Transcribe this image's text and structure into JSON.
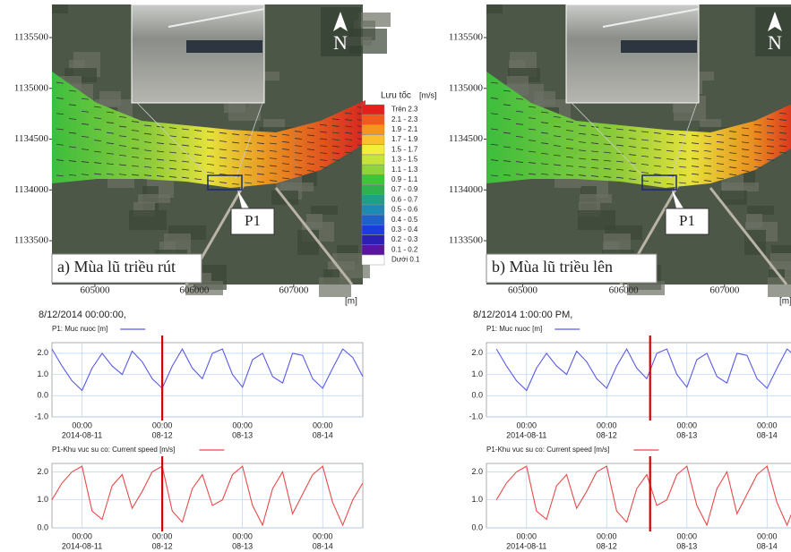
{
  "maps": [
    {
      "label": "a) Mùa lũ triều rút",
      "marker": "P1",
      "north": "N",
      "x_unit": "[m]",
      "xlim": [
        604568,
        607695
      ],
      "ylim": [
        1133069,
        1135826
      ],
      "xticks": [
        605000,
        606000,
        607000
      ],
      "yticks": [
        1133500,
        1134000,
        1134500,
        1135000,
        1135500
      ],
      "legend": {
        "title": "Lưu tốc",
        "unit": "[m/s]",
        "entries": [
          {
            "label": "Trên  2.3",
            "color": "#e3201b"
          },
          {
            "label": "2.1 - 2.3",
            "color": "#f05a1e"
          },
          {
            "label": "1.9 - 2.1",
            "color": "#f7941d"
          },
          {
            "label": "1.7 - 1.9",
            "color": "#fbc02d"
          },
          {
            "label": "1.5 - 1.7",
            "color": "#f3ee3a"
          },
          {
            "label": "1.3 - 1.5",
            "color": "#c6e43a"
          },
          {
            "label": "1.1 - 1.3",
            "color": "#8ed43a"
          },
          {
            "label": "0.9 - 1.1",
            "color": "#3cc63c"
          },
          {
            "label": "0.7 - 0.9",
            "color": "#2db24e"
          },
          {
            "label": "0.6 - 0.7",
            "color": "#1f9e8a"
          },
          {
            "label": "0.5 - 0.6",
            "color": "#1e8ab4"
          },
          {
            "label": "0.4 - 0.5",
            "color": "#1e62c8"
          },
          {
            "label": "0.3 - 0.4",
            "color": "#1e3cdc"
          },
          {
            "label": "0.2 - 0.3",
            "color": "#2d1eb4"
          },
          {
            "label": "0.1 - 0.2",
            "color": "#5a14a0"
          },
          {
            "label": "Dưới  0.1",
            "color": "#ffffff"
          }
        ]
      }
    },
    {
      "label": "b) Mùa lũ triều lên",
      "marker": "P1",
      "north": "N",
      "x_unit": "[m]",
      "xlim": [
        604640,
        607703
      ],
      "ylim": [
        1133069,
        1135826
      ],
      "xticks": [
        605000,
        606000,
        607000
      ],
      "yticks": [
        1133500,
        1134000,
        1134500,
        1135000,
        1135500
      ]
    }
  ],
  "chart_data": [
    {
      "type": "line",
      "title": "8/12/2014 00:00:00,",
      "current_time": "2014-08-12 00:00",
      "xlim": [
        "2014-08-10 15:00",
        "2014-08-14 12:00"
      ],
      "xticks": [
        {
          "value": "2014-08-11 00:00",
          "label": "00:00",
          "date_label": "2014-08-11"
        },
        {
          "value": "2014-08-12 00:00",
          "label": "00:00",
          "date_label": "08-12"
        },
        {
          "value": "2014-08-13 00:00",
          "label": "00:00",
          "date_label": "08-13"
        },
        {
          "value": "2014-08-14 00:00",
          "label": "00:00",
          "date_label": "08-14"
        }
      ],
      "ylim": [
        -1,
        2.5
      ],
      "yticks": [
        {
          "value": -1,
          "label": "-1.0"
        },
        {
          "value": 0,
          "label": "0.0"
        },
        {
          "value": 1,
          "label": "1.0"
        },
        {
          "value": 2,
          "label": "2.0"
        }
      ],
      "grid": true,
      "x": [
        "2014-08-10 15:00",
        "2014-08-10 18:00",
        "2014-08-10 21:00",
        "2014-08-11 00:00",
        "2014-08-11 03:00",
        "2014-08-11 06:00",
        "2014-08-11 09:00",
        "2014-08-11 12:00",
        "2014-08-11 15:00",
        "2014-08-11 18:00",
        "2014-08-11 21:00",
        "2014-08-12 00:00",
        "2014-08-12 03:00",
        "2014-08-12 06:00",
        "2014-08-12 09:00",
        "2014-08-12 12:00",
        "2014-08-12 15:00",
        "2014-08-12 18:00",
        "2014-08-12 21:00",
        "2014-08-13 00:00",
        "2014-08-13 03:00",
        "2014-08-13 06:00",
        "2014-08-13 09:00",
        "2014-08-13 12:00",
        "2014-08-13 15:00",
        "2014-08-13 18:00",
        "2014-08-13 21:00",
        "2014-08-14 00:00",
        "2014-08-14 03:00",
        "2014-08-14 06:00",
        "2014-08-14 09:00",
        "2014-08-14 12:00"
      ],
      "series": [
        {
          "name": "P1: Muc nuoc [m]",
          "color": "#5a5ae6",
          "values": [
            2.2,
            1.4,
            0.7,
            0.25,
            1.3,
            2.0,
            1.4,
            1.0,
            2.1,
            1.6,
            0.8,
            0.35,
            1.4,
            2.2,
            1.3,
            0.8,
            2.0,
            2.2,
            1.0,
            0.4,
            1.7,
            2.0,
            0.9,
            0.6,
            2.0,
            1.9,
            0.8,
            0.35,
            1.3,
            2.2,
            1.8,
            0.9
          ]
        }
      ]
    },
    {
      "type": "line",
      "current_time": "2014-08-12 00:00",
      "xlim": [
        "2014-08-10 15:00",
        "2014-08-14 12:00"
      ],
      "xticks": [
        {
          "value": "2014-08-11 00:00",
          "label": "00:00",
          "date_label": "2014-08-11"
        },
        {
          "value": "2014-08-12 00:00",
          "label": "00:00",
          "date_label": "08-12"
        },
        {
          "value": "2014-08-13 00:00",
          "label": "00:00",
          "date_label": "08-13"
        },
        {
          "value": "2014-08-14 00:00",
          "label": "00:00",
          "date_label": "08-14"
        }
      ],
      "ylim": [
        0,
        2.3
      ],
      "yticks": [
        {
          "value": 0,
          "label": "0.0"
        },
        {
          "value": 1,
          "label": "1.0"
        },
        {
          "value": 2,
          "label": "2.0"
        }
      ],
      "grid": true,
      "x": [
        "2014-08-10 15:00",
        "2014-08-10 18:00",
        "2014-08-10 21:00",
        "2014-08-11 00:00",
        "2014-08-11 03:00",
        "2014-08-11 06:00",
        "2014-08-11 09:00",
        "2014-08-11 12:00",
        "2014-08-11 15:00",
        "2014-08-11 18:00",
        "2014-08-11 21:00",
        "2014-08-12 00:00",
        "2014-08-12 03:00",
        "2014-08-12 06:00",
        "2014-08-12 09:00",
        "2014-08-12 12:00",
        "2014-08-12 15:00",
        "2014-08-12 18:00",
        "2014-08-12 21:00",
        "2014-08-13 00:00",
        "2014-08-13 03:00",
        "2014-08-13 06:00",
        "2014-08-13 09:00",
        "2014-08-13 12:00",
        "2014-08-13 15:00",
        "2014-08-13 18:00",
        "2014-08-13 21:00",
        "2014-08-14 00:00",
        "2014-08-14 03:00",
        "2014-08-14 06:00",
        "2014-08-14 09:00",
        "2014-08-14 12:00"
      ],
      "series": [
        {
          "name": "P1-Khu vuc su co: Current speed [m/s]",
          "color": "#e84a4a",
          "values": [
            1.0,
            1.6,
            2.0,
            2.2,
            0.6,
            0.3,
            1.5,
            1.9,
            0.7,
            1.3,
            2.0,
            2.2,
            0.6,
            0.2,
            1.4,
            1.9,
            0.8,
            1.0,
            1.9,
            2.2,
            0.8,
            0.1,
            1.4,
            2.0,
            0.5,
            1.2,
            1.9,
            2.2,
            0.9,
            0.1,
            1.0,
            1.6
          ]
        }
      ]
    },
    {
      "type": "line",
      "title": "8/12/2014 1:00:00 PM,",
      "current_time": "2014-08-12 13:00",
      "xlim": [
        "2014-08-10 12:00",
        "2014-08-14 12:00"
      ],
      "xticks": [
        {
          "value": "2014-08-11 00:00",
          "label": "00:00",
          "date_label": "2014-08-11"
        },
        {
          "value": "2014-08-12 00:00",
          "label": "00:00",
          "date_label": "08-12"
        },
        {
          "value": "2014-08-13 00:00",
          "label": "00:00",
          "date_label": "08-13"
        },
        {
          "value": "2014-08-14 00:00",
          "label": "00:00",
          "date_label": "08-14"
        }
      ],
      "ylim": [
        -1,
        2.5
      ],
      "yticks": [
        {
          "value": -1,
          "label": "-1.0"
        },
        {
          "value": 0,
          "label": "0.0"
        },
        {
          "value": 1,
          "label": "1.0"
        },
        {
          "value": 2,
          "label": "2.0"
        }
      ],
      "grid": true,
      "x": [
        "2014-08-10 15:00",
        "2014-08-10 18:00",
        "2014-08-10 21:00",
        "2014-08-11 00:00",
        "2014-08-11 03:00",
        "2014-08-11 06:00",
        "2014-08-11 09:00",
        "2014-08-11 12:00",
        "2014-08-11 15:00",
        "2014-08-11 18:00",
        "2014-08-11 21:00",
        "2014-08-12 00:00",
        "2014-08-12 03:00",
        "2014-08-12 06:00",
        "2014-08-12 09:00",
        "2014-08-12 12:00",
        "2014-08-12 15:00",
        "2014-08-12 18:00",
        "2014-08-12 21:00",
        "2014-08-13 00:00",
        "2014-08-13 03:00",
        "2014-08-13 06:00",
        "2014-08-13 09:00",
        "2014-08-13 12:00",
        "2014-08-13 15:00",
        "2014-08-13 18:00",
        "2014-08-13 21:00",
        "2014-08-14 00:00",
        "2014-08-14 03:00",
        "2014-08-14 06:00",
        "2014-08-14 09:00",
        "2014-08-14 12:00"
      ],
      "series": [
        {
          "name": "P1: Muc nuoc [m]",
          "color": "#5a5ae6",
          "values": [
            2.2,
            1.4,
            0.7,
            0.25,
            1.3,
            2.0,
            1.4,
            1.0,
            2.1,
            1.6,
            0.8,
            0.35,
            1.4,
            2.2,
            1.3,
            0.8,
            2.0,
            2.2,
            1.0,
            0.4,
            1.7,
            2.0,
            0.9,
            0.6,
            2.0,
            1.9,
            0.8,
            0.35,
            1.3,
            2.2,
            1.8,
            0.9
          ]
        }
      ]
    },
    {
      "type": "line",
      "current_time": "2014-08-12 13:00",
      "xlim": [
        "2014-08-10 12:00",
        "2014-08-14 12:00"
      ],
      "xticks": [
        {
          "value": "2014-08-11 00:00",
          "label": "00:00",
          "date_label": "2014-08-11"
        },
        {
          "value": "2014-08-12 00:00",
          "label": "00:00",
          "date_label": "08-12"
        },
        {
          "value": "2014-08-13 00:00",
          "label": "00:00",
          "date_label": "08-13"
        },
        {
          "value": "2014-08-14 00:00",
          "label": "00:00",
          "date_label": "08-14"
        }
      ],
      "ylim": [
        0,
        2.3
      ],
      "yticks": [
        {
          "value": 0,
          "label": "0.0"
        },
        {
          "value": 1,
          "label": "1.0"
        },
        {
          "value": 2,
          "label": "2.0"
        }
      ],
      "grid": true,
      "x": [
        "2014-08-10 15:00",
        "2014-08-10 18:00",
        "2014-08-10 21:00",
        "2014-08-11 00:00",
        "2014-08-11 03:00",
        "2014-08-11 06:00",
        "2014-08-11 09:00",
        "2014-08-11 12:00",
        "2014-08-11 15:00",
        "2014-08-11 18:00",
        "2014-08-11 21:00",
        "2014-08-12 00:00",
        "2014-08-12 03:00",
        "2014-08-12 06:00",
        "2014-08-12 09:00",
        "2014-08-12 12:00",
        "2014-08-12 15:00",
        "2014-08-12 18:00",
        "2014-08-12 21:00",
        "2014-08-13 00:00",
        "2014-08-13 03:00",
        "2014-08-13 06:00",
        "2014-08-13 09:00",
        "2014-08-13 12:00",
        "2014-08-13 15:00",
        "2014-08-13 18:00",
        "2014-08-13 21:00",
        "2014-08-14 00:00",
        "2014-08-14 03:00",
        "2014-08-14 06:00",
        "2014-08-14 09:00",
        "2014-08-14 12:00"
      ],
      "series": [
        {
          "name": "P1-Khu vuc su co: Current speed [m/s]",
          "color": "#e84a4a",
          "values": [
            1.0,
            1.6,
            2.0,
            2.2,
            0.6,
            0.3,
            1.5,
            1.9,
            0.7,
            1.3,
            2.0,
            2.2,
            0.6,
            0.2,
            1.4,
            1.9,
            0.8,
            1.0,
            1.9,
            2.2,
            0.8,
            0.1,
            1.4,
            2.0,
            0.5,
            1.2,
            1.9,
            2.2,
            0.9,
            0.1,
            1.0,
            1.6
          ]
        }
      ]
    }
  ]
}
